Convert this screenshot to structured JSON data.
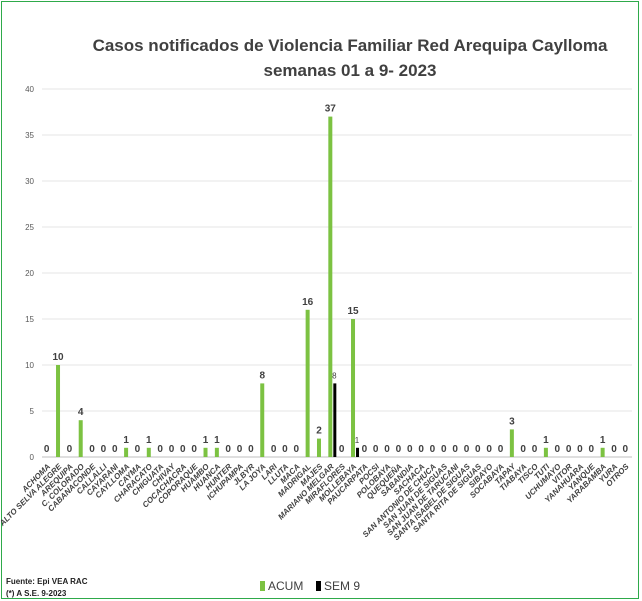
{
  "chart_data": {
    "type": "bar",
    "title_line1": "Casos notificados  de Violencia Familiar Red Arequipa Caylloma",
    "title_line2": "semanas 01 a 9- 2023",
    "ylim": [
      0,
      40
    ],
    "yticks": [
      0,
      5,
      10,
      15,
      20,
      25,
      30,
      35,
      40
    ],
    "categories": [
      "ACHOMA",
      "ALTO SELVA ALEGRE",
      "AREQUIPA",
      "C. COLORADO",
      "CABANACONDE",
      "CALLALLI",
      "CAYARANI",
      "CAYLLOMA",
      "CAYMA",
      "CHARACATO",
      "CHIGUATA",
      "CHIVAY",
      "COCACHACRA",
      "COPORAQUE",
      "HUAMBO",
      "HUANCA",
      "HUNTER",
      "ICHUPAMPA",
      "JLBYR",
      "LA JOYA",
      "LARI",
      "LLUTA",
      "MACA",
      "MADRIGAL",
      "MAJES",
      "MARIANO MELGAR",
      "MIRAFLORES",
      "MOLLEBAYA",
      "PAUCARPATA",
      "POCSI",
      "POLOBAYA",
      "QUEQUEÑA",
      "SABANDIA",
      "SACHACA",
      "SAN ANTONIO DE CHUCA",
      "SAN JUAN DE SIGUAS",
      "SAN JUAN DE TARUCANI",
      "SANTA ISABEL DE SIGUAS",
      "SANTA RITA DE SIGUAS",
      "SIBAYO",
      "SOCABAYA",
      "TAPAY",
      "TIABAYA",
      "TISCO",
      "TUTI",
      "UCHUMAYO",
      "VITOR",
      "YANAHUARA",
      "YANQUE",
      "YARABAMBA",
      "YURA",
      "OTROS"
    ],
    "series": [
      {
        "name": "ACUM",
        "color": "#7cc242",
        "values": [
          0,
          10,
          0,
          4,
          0,
          0,
          0,
          1,
          0,
          1,
          0,
          0,
          0,
          0,
          1,
          1,
          0,
          0,
          0,
          8,
          0,
          0,
          0,
          16,
          2,
          37,
          0,
          15,
          0,
          0,
          0,
          0,
          0,
          0,
          0,
          0,
          0,
          0,
          0,
          0,
          0,
          3,
          0,
          0,
          1,
          0,
          0,
          0,
          0,
          1,
          0,
          0
        ]
      },
      {
        "name": "SEM 9",
        "color": "#000000",
        "values": [
          null,
          null,
          null,
          null,
          null,
          null,
          null,
          null,
          null,
          null,
          null,
          null,
          null,
          null,
          null,
          null,
          null,
          null,
          null,
          null,
          null,
          null,
          null,
          null,
          null,
          8,
          null,
          1,
          null,
          null,
          null,
          null,
          null,
          null,
          null,
          null,
          null,
          null,
          null,
          null,
          null,
          null,
          null,
          null,
          null,
          null,
          null,
          null,
          null,
          null,
          null,
          null
        ]
      }
    ],
    "legend": [
      "ACUM",
      "SEM 9"
    ],
    "legend_position": "bottom",
    "grid": true
  },
  "footer": {
    "source_line1": "Fuente: Epi VEA RAC",
    "source_line2": "(*) A S.E. 9-2023"
  }
}
